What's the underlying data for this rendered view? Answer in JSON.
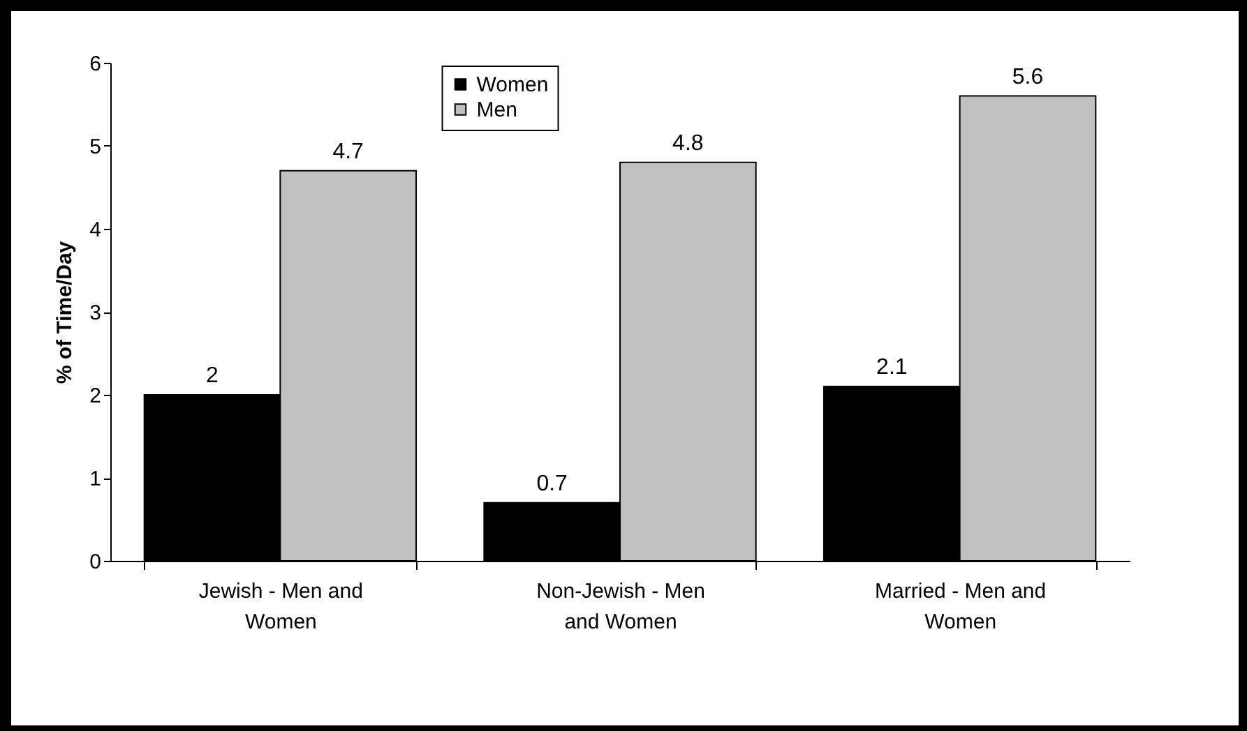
{
  "chart_data": {
    "type": "bar",
    "ylabel": "% of Time/Day",
    "categories": [
      "Jewish - Men and Women",
      "Non-Jewish - Men and Women",
      "Married - Men and Women"
    ],
    "series": [
      {
        "name": "Women",
        "color": "#000000",
        "values": [
          2,
          0.7,
          2.1
        ]
      },
      {
        "name": "Men",
        "color": "#c0c0c0",
        "values": [
          4.7,
          4.8,
          5.6
        ]
      }
    ],
    "ylim": [
      0,
      6
    ],
    "yticks": [
      0,
      1,
      2,
      3,
      4,
      5,
      6
    ],
    "grid": false,
    "legend": "top",
    "data_labels": true
  }
}
